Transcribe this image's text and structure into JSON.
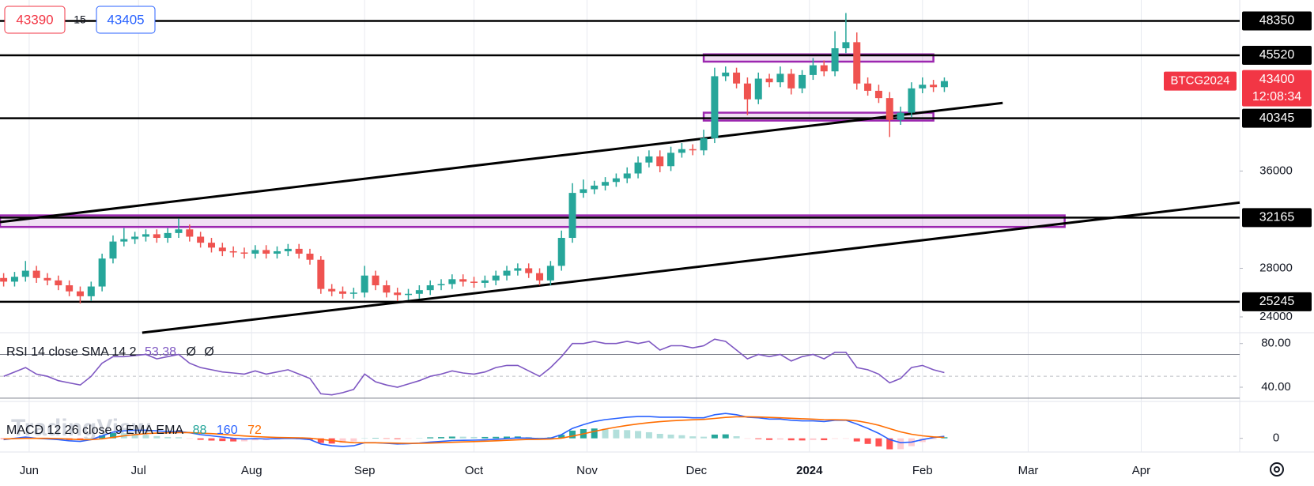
{
  "order_panel": {
    "sell": 43390,
    "spread": 15,
    "buy": 43405
  },
  "watermark": "TradingView",
  "chart_data": [
    {
      "type": "candlestick",
      "symbol": "BTCG2024",
      "countdown": "12:08:34",
      "x": [
        -7,
        -4,
        -1,
        2,
        5,
        8,
        11,
        14,
        17,
        20,
        23,
        26,
        29,
        32,
        35,
        38,
        41,
        44,
        47,
        50,
        53,
        56,
        59,
        62,
        65,
        68,
        71,
        74,
        77,
        80,
        83,
        86,
        89,
        92,
        95,
        98,
        101,
        104,
        107,
        110,
        113,
        116,
        119,
        122,
        125,
        128,
        131,
        134,
        137,
        140,
        143,
        146,
        149,
        152,
        155,
        158,
        161,
        164,
        167,
        170,
        173,
        176,
        179,
        182,
        185,
        188,
        191,
        194,
        197,
        200,
        203,
        206,
        209,
        212,
        215,
        218,
        221,
        224,
        227,
        230,
        233,
        236,
        239,
        242,
        245,
        248,
        251
      ],
      "open": [
        27200,
        26900,
        27300,
        27800,
        27200,
        27000,
        26600,
        26100,
        25700,
        26500,
        28800,
        30200,
        30400,
        30600,
        30800,
        30500,
        30900,
        31200,
        30600,
        30100,
        29700,
        29400,
        29300,
        29200,
        29500,
        29200,
        29400,
        29600,
        29200,
        28700,
        26300,
        26100,
        25900,
        26000,
        27400,
        26600,
        26000,
        25800,
        25900,
        26200,
        26600,
        26700,
        27100,
        26900,
        26800,
        27000,
        27400,
        27800,
        28000,
        27600,
        27000,
        28200,
        30500,
        34200,
        34500,
        34800,
        35100,
        35400,
        35800,
        36700,
        37200,
        36400,
        37500,
        37800,
        37700,
        38700,
        43800,
        44100,
        43200,
        41900,
        43600,
        43300,
        44000,
        42800,
        43900,
        44700,
        44200,
        46100,
        46600,
        43200,
        42600,
        42000,
        40200,
        40800,
        42800,
        43100,
        42900
      ],
      "high": [
        27600,
        27700,
        28600,
        28200,
        27600,
        27400,
        27000,
        26500,
        26900,
        29200,
        30700,
        31300,
        31000,
        31200,
        31200,
        31300,
        32100,
        31600,
        31000,
        30500,
        30100,
        29800,
        29700,
        29900,
        29900,
        29800,
        30000,
        30000,
        29600,
        29000,
        26700,
        26500,
        26400,
        28200,
        27800,
        27000,
        26400,
        26300,
        26600,
        27000,
        27100,
        27500,
        27500,
        27300,
        27400,
        27800,
        28200,
        28400,
        28400,
        28000,
        28600,
        31100,
        35000,
        35300,
        35200,
        35500,
        35800,
        36300,
        37200,
        37700,
        37700,
        38000,
        38300,
        38200,
        39400,
        44500,
        44600,
        44500,
        43700,
        44100,
        44000,
        44600,
        44400,
        44300,
        45300,
        45100,
        47500,
        49000,
        47400,
        43700,
        43100,
        42500,
        41300,
        43300,
        43700,
        43500,
        43700
      ],
      "low": [
        26500,
        26500,
        26900,
        26800,
        26600,
        26200,
        25700,
        25100,
        25300,
        26100,
        28400,
        29800,
        30000,
        30200,
        30100,
        30100,
        30500,
        30200,
        29700,
        29300,
        29000,
        28900,
        28800,
        28800,
        28800,
        28800,
        29000,
        28800,
        28300,
        25900,
        25700,
        25500,
        25500,
        25600,
        26200,
        25600,
        25300,
        25400,
        25500,
        25800,
        26200,
        26300,
        26500,
        26400,
        26400,
        26600,
        27000,
        27400,
        27200,
        26600,
        26600,
        27800,
        30100,
        33800,
        34100,
        34400,
        34700,
        35000,
        35400,
        36300,
        35900,
        36000,
        37100,
        37300,
        37300,
        38300,
        43400,
        42800,
        40600,
        41500,
        42900,
        42900,
        42300,
        42400,
        43500,
        43800,
        43800,
        45700,
        42700,
        42200,
        41600,
        38800,
        39800,
        40400,
        42400,
        42500,
        42500
      ],
      "close": [
        26900,
        27300,
        27800,
        27200,
        27000,
        26600,
        26100,
        25700,
        26500,
        28800,
        30200,
        30400,
        30600,
        30800,
        30500,
        30900,
        31200,
        30600,
        30100,
        29700,
        29400,
        29300,
        29200,
        29500,
        29200,
        29400,
        29600,
        29200,
        28700,
        26300,
        26100,
        25900,
        26000,
        27400,
        26600,
        26000,
        25800,
        25900,
        26200,
        26600,
        26700,
        27100,
        26900,
        26800,
        27000,
        27400,
        27800,
        28000,
        27600,
        27000,
        28200,
        30500,
        34200,
        34500,
        34800,
        35100,
        35400,
        35800,
        36700,
        37200,
        36400,
        37500,
        37800,
        37700,
        38700,
        43800,
        44100,
        43200,
        41900,
        43600,
        43300,
        44000,
        42800,
        43900,
        44700,
        44200,
        46100,
        46600,
        43200,
        42600,
        42000,
        40200,
        40800,
        42800,
        43100,
        42900,
        43400
      ],
      "xlim": [
        -8,
        332
      ],
      "ylim": [
        22700,
        50070
      ],
      "xticks": [
        {
          "value": 0,
          "label": "Jun"
        },
        {
          "value": 30,
          "label": "Jul"
        },
        {
          "value": 61,
          "label": "Aug"
        },
        {
          "value": 92,
          "label": "Sep"
        },
        {
          "value": 122,
          "label": "Oct"
        },
        {
          "value": 153,
          "label": "Nov"
        },
        {
          "value": 183,
          "label": "Dec"
        },
        {
          "value": 214,
          "label": "2024"
        },
        {
          "value": 245,
          "label": "Feb"
        },
        {
          "value": 274,
          "label": "Mar"
        },
        {
          "value": 305,
          "label": "Apr"
        }
      ],
      "yticks": [
        24000,
        28000,
        36000
      ],
      "levels": [
        48350,
        45520,
        40345,
        32165,
        25245
      ],
      "trendlines": [
        {
          "x": [
            -8,
            267
          ],
          "y": [
            31800,
            41600
          ]
        },
        {
          "x": [
            31,
            332
          ],
          "y": [
            22700,
            33400
          ]
        }
      ],
      "boxes": [
        {
          "x": [
            185,
            248
          ],
          "y": [
            45000,
            45600
          ]
        },
        {
          "x": [
            185,
            248
          ],
          "y": [
            40150,
            40800
          ]
        },
        {
          "x": [
            -8,
            284
          ],
          "y": [
            31400,
            32350
          ]
        }
      ],
      "up_color": "#26a69a",
      "down_color": "#ef5350",
      "level_color": "#000000",
      "box_color": "#9c27b0",
      "price_color": "#f23645",
      "grid": true
    },
    {
      "type": "line",
      "title": "RSI 14 close SMA 14 2",
      "values": [
        50,
        54,
        58,
        52,
        50,
        46,
        44,
        42,
        50,
        62,
        68,
        68,
        69,
        70,
        66,
        68,
        70,
        62,
        58,
        56,
        54,
        53,
        52,
        55,
        52,
        54,
        56,
        52,
        48,
        34,
        33,
        35,
        38,
        52,
        45,
        42,
        40,
        43,
        46,
        50,
        52,
        55,
        53,
        52,
        54,
        58,
        60,
        60,
        55,
        50,
        58,
        68,
        80,
        80,
        82,
        80,
        80,
        82,
        80,
        82,
        74,
        78,
        78,
        76,
        78,
        84,
        82,
        74,
        66,
        70,
        68,
        70,
        64,
        68,
        70,
        66,
        72,
        72,
        58,
        56,
        52,
        44,
        48,
        58,
        60,
        56,
        53.38
      ],
      "value_marks": [
        "Ø",
        "Ø"
      ],
      "color": "#7e57c2",
      "ylim": [
        27.7,
        89.2
      ],
      "yticks": [
        {
          "value": 40,
          "label": "40.00"
        },
        {
          "value": 80,
          "label": "80.00"
        }
      ],
      "bands": [
        30,
        50,
        70
      ]
    },
    {
      "type": "macd",
      "title": "MACD 12 26 close 9 EMA EMA",
      "histogram": [
        -50,
        30,
        100,
        0,
        -50,
        -80,
        -140,
        -150,
        0,
        240,
        420,
        400,
        350,
        270,
        180,
        110,
        90,
        -10,
        -120,
        -180,
        -220,
        -250,
        -240,
        -160,
        -150,
        -100,
        -55,
        -70,
        -110,
        -370,
        -420,
        -370,
        -250,
        10,
        10,
        -30,
        -60,
        -30,
        20,
        80,
        100,
        140,
        130,
        110,
        110,
        120,
        140,
        150,
        110,
        50,
        80,
        280,
        620,
        740,
        790,
        760,
        700,
        660,
        590,
        490,
        360,
        300,
        250,
        160,
        130,
        300,
        320,
        170,
        -30,
        -60,
        -130,
        -100,
        -160,
        -170,
        -140,
        -150,
        -40,
        -30,
        -250,
        -450,
        -650,
        -880,
        -870,
        -630,
        -300,
        -60,
        88
      ],
      "macd": [
        -100,
        0,
        100,
        0,
        -50,
        -100,
        -200,
        -250,
        -100,
        200,
        500,
        600,
        650,
        650,
        600,
        550,
        550,
        450,
        300,
        200,
        100,
        0,
        -50,
        -20,
        -50,
        -30,
        0,
        -30,
        -100,
        -450,
        -600,
        -650,
        -600,
        -350,
        -350,
        -400,
        -450,
        -430,
        -380,
        -300,
        -250,
        -180,
        -160,
        -150,
        -120,
        -80,
        -20,
        30,
        20,
        -30,
        20,
        300,
        800,
        1100,
        1350,
        1500,
        1600,
        1700,
        1750,
        1750,
        1700,
        1700,
        1700,
        1650,
        1650,
        1900,
        2000,
        1900,
        1700,
        1650,
        1550,
        1550,
        1450,
        1400,
        1400,
        1350,
        1450,
        1450,
        1150,
        800,
        400,
        -100,
        -350,
        -300,
        -100,
        60,
        160
      ],
      "signal": [
        -50,
        -30,
        0,
        0,
        0,
        -20,
        -60,
        -100,
        -100,
        -40,
        80,
        200,
        300,
        380,
        420,
        440,
        460,
        460,
        420,
        380,
        320,
        250,
        190,
        140,
        100,
        70,
        55,
        40,
        10,
        -80,
        -180,
        -280,
        -350,
        -360,
        -360,
        -370,
        -390,
        -400,
        -400,
        -380,
        -350,
        -320,
        -290,
        -260,
        -230,
        -200,
        -160,
        -120,
        -90,
        -80,
        -60,
        20,
        180,
        360,
        560,
        740,
        900,
        1040,
        1160,
        1260,
        1340,
        1400,
        1450,
        1490,
        1520,
        1600,
        1680,
        1730,
        1730,
        1710,
        1680,
        1650,
        1610,
        1570,
        1540,
        1500,
        1490,
        1480,
        1400,
        1250,
        1050,
        780,
        520,
        330,
        200,
        120,
        72
      ],
      "histogram_color": "#26a69a",
      "macd_color": "#2962ff",
      "signal_color": "#ff6d00",
      "ylim": [
        -1100,
        2900
      ],
      "yticks": [
        0
      ]
    }
  ]
}
